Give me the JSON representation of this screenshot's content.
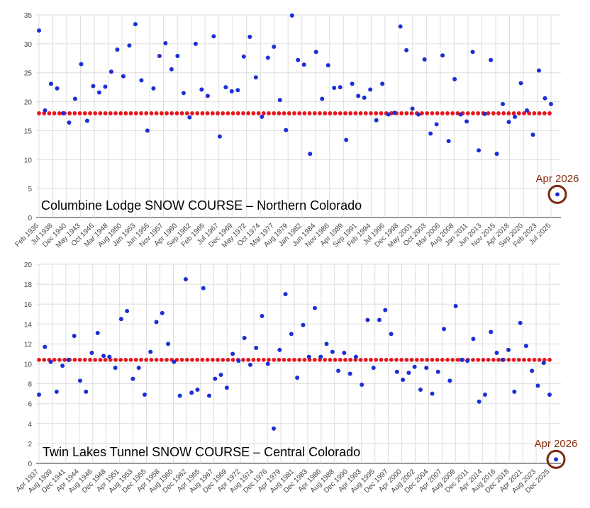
{
  "chart_data": [
    {
      "type": "scatter",
      "title": "Columbine Lodge SNOW COURSE – Northern Colorado",
      "ylim": [
        0,
        35
      ],
      "yticks": [
        0,
        5,
        10,
        15,
        20,
        25,
        30,
        35
      ],
      "grid": true,
      "x_tick_labels": [
        "Feb 1936",
        "Jul 1938",
        "Dec 1940",
        "May 1943",
        "Oct 1945",
        "Mar 1948",
        "Aug 1950",
        "Jan 1953",
        "Jun 1955",
        "Nov 1957",
        "Apr 1960",
        "Sep 1962",
        "Feb 1965",
        "Jul 1967",
        "Dec 1969",
        "May 1972",
        "Oct 1974",
        "Mar 1977",
        "Aug 1979",
        "Jan 1982",
        "Jun 1984",
        "Nov 1986",
        "Apr 1989",
        "Sep 1991",
        "Feb 1994",
        "Jul 1996",
        "Dec 1998",
        "May 2001",
        "Oct 2003",
        "Mar 2006",
        "Aug 2008",
        "Jan 2011",
        "Jun 2013",
        "Nov 2015",
        "Apr 2018",
        "Sep 2020",
        "Feb 2023",
        "Jul 2025"
      ],
      "series": [
        {
          "color": "#1a2fd6",
          "values": [
            32.3,
            18.5,
            23.1,
            22.3,
            18.0,
            16.4,
            20.5,
            26.5,
            16.7,
            22.7,
            21.6,
            22.6,
            25.2,
            29.0,
            24.4,
            29.7,
            33.4,
            23.7,
            15.0,
            22.3,
            27.9,
            30.1,
            25.6,
            27.9,
            21.5,
            17.3,
            30.0,
            22.1,
            21.0,
            31.3,
            14.0,
            22.5,
            21.8,
            22.0,
            27.8,
            31.2,
            24.2,
            17.4,
            27.6,
            29.5,
            20.3,
            15.1,
            34.9,
            27.2,
            26.4,
            11.0,
            28.6,
            20.5,
            26.3,
            22.4,
            22.5,
            13.4,
            23.1,
            21.0,
            20.7,
            22.1,
            16.8,
            23.1,
            17.8,
            18.1,
            33.0,
            28.9,
            18.8,
            17.8,
            27.3,
            14.5,
            16.1,
            28.0,
            13.2,
            23.9,
            17.8,
            16.6,
            28.6,
            11.6,
            17.9,
            27.2,
            11.0,
            19.6,
            16.5,
            17.4,
            23.2,
            18.5,
            14.3,
            25.4,
            20.6,
            19.6
          ]
        }
      ],
      "median": 18.0,
      "median_color": "#e8141c",
      "annotation": {
        "label": "Apr 2026",
        "value": 4.0
      }
    },
    {
      "type": "scatter",
      "title": "Twin Lakes Tunnel SNOW COURSE – Central Colorado",
      "ylim": [
        0,
        20
      ],
      "yticks": [
        0,
        2,
        4,
        6,
        8,
        10,
        12,
        14,
        16,
        18,
        20
      ],
      "grid": true,
      "x_tick_labels": [
        "Apr 1937",
        "Aug 1939",
        "Dec 1941",
        "Apr 1944",
        "Aug 1946",
        "Dec 1948",
        "Apr 1951",
        "Aug 1953",
        "Dec 1955",
        "Apr 1958",
        "Aug 1960",
        "Dec 1962",
        "Apr 1965",
        "Aug 1967",
        "Dec 1969",
        "Apr 1972",
        "Aug 1974",
        "Dec 1976",
        "Apr 1979",
        "Aug 1981",
        "Dec 1983",
        "Apr 1986",
        "Aug 1988",
        "Dec 1990",
        "Apr 1993",
        "Aug 1995",
        "Dec 1997",
        "Apr 2000",
        "Aug 2002",
        "Dec 2004",
        "Apr 2007",
        "Aug 2009",
        "Dec 2011",
        "Apr 2014",
        "Aug 2016",
        "Dec 2018",
        "Apr 2021",
        "Aug 2023",
        "Dec 2025"
      ],
      "series": [
        {
          "color": "#1a2fd6",
          "values": [
            6.9,
            11.7,
            10.2,
            7.2,
            9.8,
            10.4,
            12.8,
            8.3,
            7.2,
            11.1,
            13.1,
            10.8,
            10.7,
            9.6,
            14.5,
            15.3,
            8.5,
            9.6,
            6.9,
            11.2,
            14.2,
            15.1,
            12.0,
            10.2,
            6.8,
            18.5,
            7.1,
            7.4,
            17.6,
            6.8,
            8.5,
            8.9,
            7.6,
            11.0,
            10.3,
            12.6,
            9.9,
            11.6,
            14.8,
            10.0,
            3.5,
            11.4,
            17.0,
            13.0,
            8.6,
            13.9,
            10.7,
            15.6,
            10.7,
            12.0,
            11.2,
            9.3,
            11.1,
            9.0,
            10.7,
            7.9,
            14.4,
            9.6,
            14.4,
            15.4,
            13.0,
            9.2,
            8.4,
            9.1,
            9.7,
            7.4,
            9.6,
            7.0,
            9.2,
            13.5,
            8.3,
            15.8,
            10.4,
            10.3,
            12.5,
            6.2,
            6.9,
            13.2,
            11.1,
            10.4,
            11.4,
            7.2,
            14.1,
            11.8,
            9.3,
            7.8,
            10.1,
            6.9
          ]
        }
      ],
      "median": 10.4,
      "median_color": "#e8141c",
      "annotation": {
        "label": "Apr 2026",
        "value": 0.4
      }
    }
  ]
}
